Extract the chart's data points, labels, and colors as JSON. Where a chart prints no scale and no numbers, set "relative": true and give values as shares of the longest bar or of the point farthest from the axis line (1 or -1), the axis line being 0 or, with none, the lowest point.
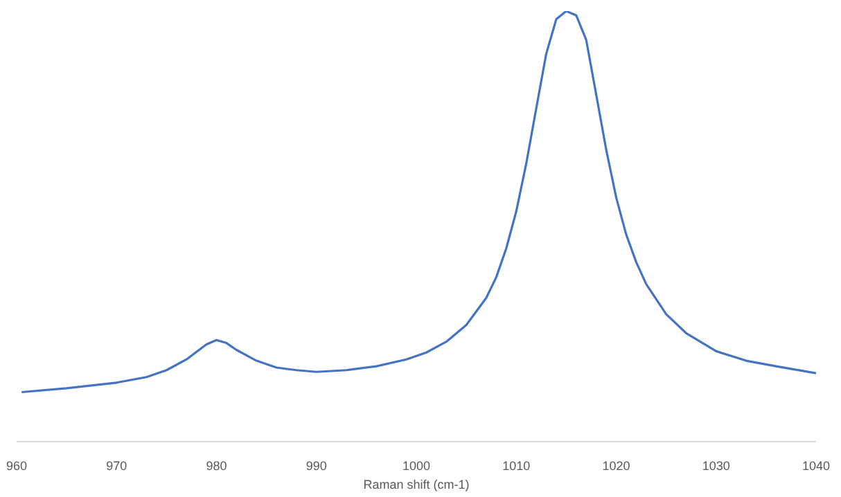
{
  "chart_data": {
    "type": "line",
    "relative": true,
    "xlabel": "Raman shift (cm-1)",
    "x": [
      960.5,
      965,
      970,
      973,
      975,
      977,
      979,
      980,
      981,
      982,
      984,
      986,
      988,
      990,
      993,
      996,
      999,
      1001,
      1003,
      1005,
      1007,
      1008,
      1009,
      1010,
      1011,
      1012,
      1013,
      1014,
      1015,
      1016,
      1017,
      1018,
      1019,
      1020,
      1021,
      1022,
      1023,
      1025,
      1027,
      1030,
      1033,
      1036,
      1040
    ],
    "series": [
      {
        "color": "#4472c4",
        "values": [
          0.115,
          0.124,
          0.137,
          0.15,
          0.166,
          0.191,
          0.226,
          0.236,
          0.229,
          0.213,
          0.188,
          0.172,
          0.166,
          0.162,
          0.166,
          0.175,
          0.191,
          0.207,
          0.232,
          0.271,
          0.334,
          0.382,
          0.449,
          0.535,
          0.646,
          0.774,
          0.901,
          0.981,
          1,
          0.99,
          0.933,
          0.806,
          0.678,
          0.567,
          0.481,
          0.417,
          0.366,
          0.296,
          0.252,
          0.21,
          0.188,
          0.175,
          0.159
        ]
      }
    ],
    "xlim": [
      960,
      1040
    ],
    "xticks": [
      960,
      970,
      980,
      990,
      1000,
      1010,
      1020,
      1030,
      1040
    ],
    "grid": false,
    "legend": false,
    "marker": "none",
    "line_style": "solid"
  }
}
